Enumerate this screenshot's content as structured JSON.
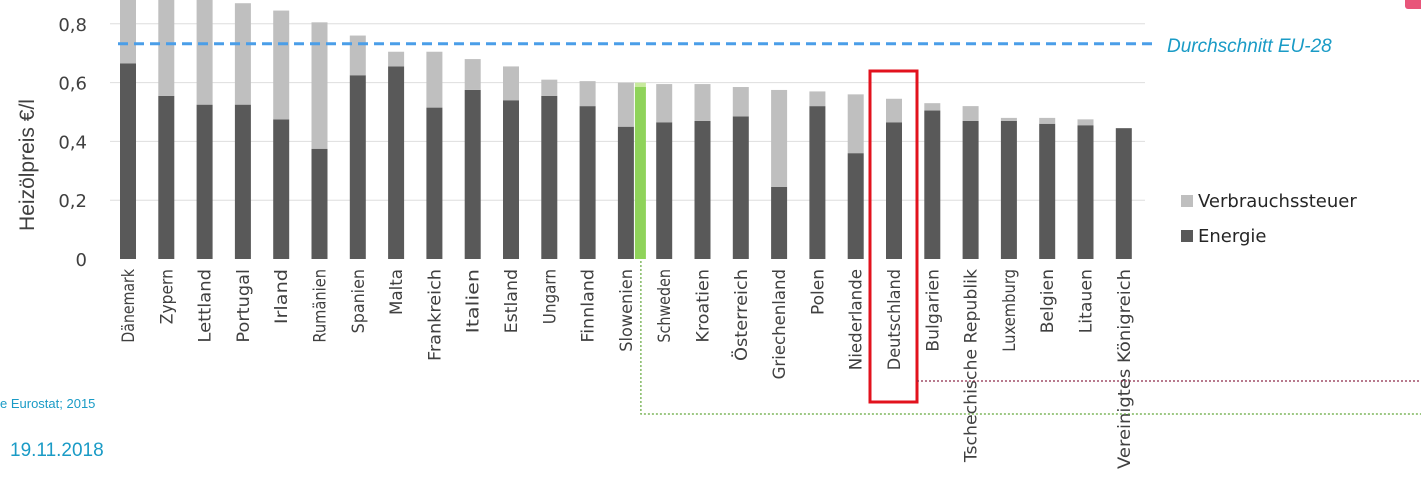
{
  "chart_data": {
    "type": "bar",
    "stacked": true,
    "ylabel": "Heizölpreis  €/l",
    "ylim": [
      0,
      0.9
    ],
    "yticks": [
      "0",
      "0,2",
      "0,4",
      "0,6",
      "0,8"
    ],
    "ytick_values": [
      0,
      0.2,
      0.4,
      0.6,
      0.8
    ],
    "grid": "horizontal",
    "legend_position": "right",
    "categories": [
      "Dänemark",
      "Zypern",
      "Lettland",
      "Portugal",
      "Irland",
      "Rumänien",
      "Spanien",
      "Malta",
      "Frankreich",
      "Italien",
      "Estland",
      "Ungarn",
      "Finnland",
      "Slowenien",
      "Schweden",
      "Kroatien",
      "Österreich",
      "Griechenland",
      "Polen",
      "Niederlande",
      "Deutschland",
      "Bulgarien",
      "Tschechische Republik",
      "Luxemburg",
      "Belgien",
      "Litauen",
      "Vereinigtes Königreich"
    ],
    "series": [
      {
        "name": "Energie",
        "color": "#595959",
        "values": [
          0.665,
          0.555,
          0.525,
          0.525,
          0.475,
          0.375,
          0.625,
          0.655,
          0.515,
          0.575,
          0.54,
          0.555,
          0.52,
          0.45,
          0.465,
          0.47,
          0.485,
          0.245,
          0.52,
          0.36,
          0.465,
          0.505,
          0.47,
          0.47,
          0.46,
          0.455,
          0.445
        ]
      },
      {
        "name": "Verbrauchssteuer",
        "color": "#bfbfbf",
        "values": [
          0.29,
          0.38,
          0.4,
          0.345,
          0.37,
          0.43,
          0.135,
          0.05,
          0.19,
          0.105,
          0.115,
          0.055,
          0.085,
          0.15,
          0.13,
          0.125,
          0.1,
          0.33,
          0.05,
          0.2,
          0.08,
          0.025,
          0.05,
          0.01,
          0.02,
          0.02,
          0.0
        ]
      }
    ],
    "average": {
      "label": "Durchschnitt EU-28",
      "value": 0.732,
      "color": "#4a9ee8"
    },
    "highlight_marker": {
      "after_category": "Slowenien",
      "color": "#8fd35a"
    },
    "highlight_box": {
      "category": "Deutschland",
      "color": "#e2121d"
    }
  },
  "source": "e Eurostat; 2015",
  "date": "19.11.2018"
}
